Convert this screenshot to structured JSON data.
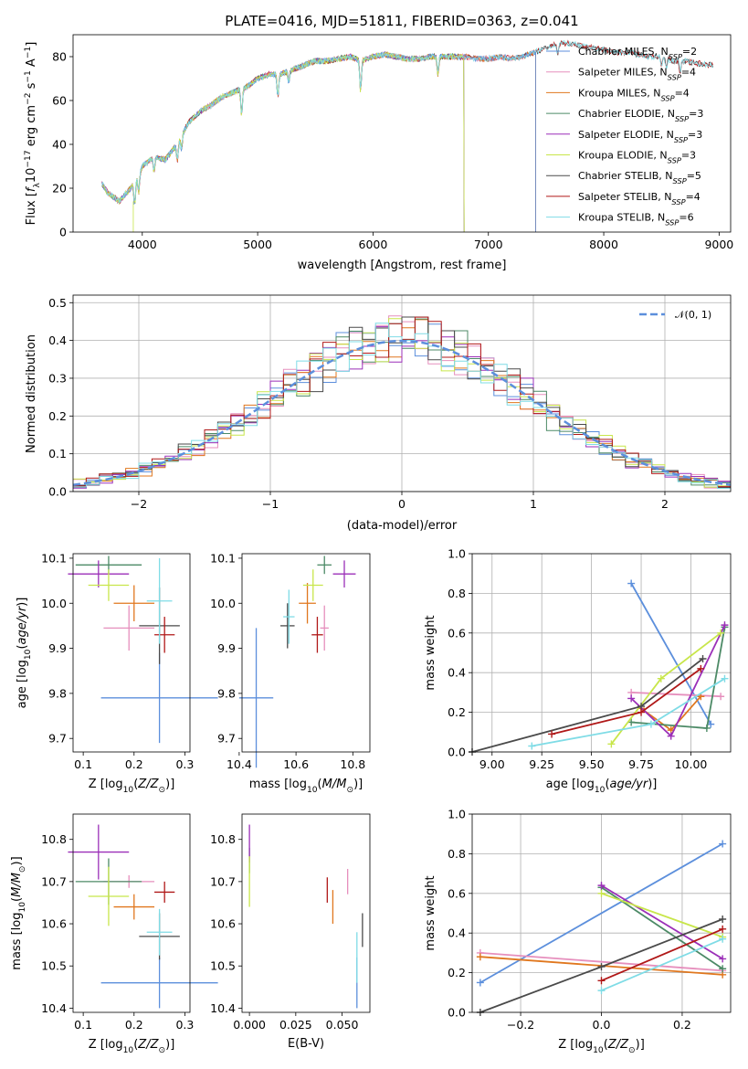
{
  "figure_title": "PLATE=0416, MJD=51811, FIBERID=0363, z=0.041",
  "palette": {
    "Chabrier MILES": "#5c8fdc",
    "Salpeter MILES": "#e68fbd",
    "Kroupa MILES": "#e0771e",
    "Chabrier ELODIE": "#4c8a66",
    "Salpeter ELODIE": "#9b2fb8",
    "Kroupa ELODIE": "#c8e64a",
    "Chabrier STELIB": "#4a4a4a",
    "Salpeter STELIB": "#b01818",
    "Kroupa STELIB": "#7fdce6"
  },
  "chart_data": [
    {
      "id": "spectrum",
      "type": "line",
      "xlabel": "wavelength [Angstrom, rest frame]",
      "ylabel": "Flux [f_λ10^-17 erg cm^-2 s^-1 A^-1]",
      "xlim": [
        3400,
        9100
      ],
      "ylim": [
        0,
        90
      ],
      "xticks": [
        4000,
        5000,
        6000,
        7000,
        8000,
        9000
      ],
      "yticks": [
        0,
        20,
        40,
        60,
        80
      ],
      "grid": false,
      "legend_position": "right",
      "series": [
        {
          "name": "Chabrier MILES, N_SSP=2",
          "x_end": 7410
        },
        {
          "name": "Salpeter MILES, N_SSP=4",
          "x_end": 7410
        },
        {
          "name": "Kroupa MILES, N_SSP=4",
          "x_end": 7410
        },
        {
          "name": "Chabrier ELODIE, N_SSP=3",
          "x_end": 6790
        },
        {
          "name": "Salpeter ELODIE, N_SSP=3",
          "x_end": 6790
        },
        {
          "name": "Kroupa ELODIE, N_SSP=3",
          "x_end": 6790
        },
        {
          "name": "Chabrier STELIB, N_SSP=5",
          "x_end": 8950
        },
        {
          "name": "Salpeter STELIB, N_SSP=4",
          "x_end": 8950
        },
        {
          "name": "Kroupa STELIB, N_SSP=6",
          "x_end": 8950
        }
      ],
      "continuum": [
        [
          3650,
          22
        ],
        [
          3700,
          18
        ],
        [
          3800,
          14
        ],
        [
          3900,
          20
        ],
        [
          3950,
          24
        ],
        [
          4000,
          30
        ],
        [
          4100,
          34
        ],
        [
          4200,
          33
        ],
        [
          4300,
          40
        ],
        [
          4400,
          50
        ],
        [
          4500,
          55
        ],
        [
          4600,
          58
        ],
        [
          4700,
          62
        ],
        [
          4800,
          64
        ],
        [
          4900,
          66
        ],
        [
          5000,
          70
        ],
        [
          5100,
          72
        ],
        [
          5200,
          72
        ],
        [
          5300,
          74
        ],
        [
          5400,
          76
        ],
        [
          5500,
          78
        ],
        [
          5600,
          78
        ],
        [
          5700,
          79
        ],
        [
          5800,
          80
        ],
        [
          5900,
          78
        ],
        [
          6000,
          80
        ],
        [
          6100,
          81
        ],
        [
          6200,
          80
        ],
        [
          6300,
          79
        ],
        [
          6400,
          79
        ],
        [
          6500,
          80
        ],
        [
          6600,
          80
        ],
        [
          6700,
          80
        ],
        [
          6800,
          80
        ],
        [
          6900,
          79
        ],
        [
          7000,
          79
        ],
        [
          7100,
          80
        ],
        [
          7200,
          79
        ],
        [
          7300,
          80
        ],
        [
          7400,
          82
        ],
        [
          7500,
          84
        ],
        [
          7600,
          86
        ],
        [
          7700,
          86
        ],
        [
          7800,
          85
        ],
        [
          7900,
          84
        ],
        [
          8000,
          83
        ],
        [
          8100,
          82
        ],
        [
          8200,
          82
        ],
        [
          8300,
          81
        ],
        [
          8400,
          80
        ],
        [
          8500,
          80
        ],
        [
          8600,
          78
        ],
        [
          8700,
          78
        ],
        [
          8800,
          77
        ],
        [
          8950,
          76
        ]
      ],
      "absorption": [
        [
          3934,
          -10
        ],
        [
          3969,
          -8
        ],
        [
          4102,
          -6
        ],
        [
          4304,
          -8
        ],
        [
          4340,
          -6
        ],
        [
          4861,
          -12
        ],
        [
          5175,
          -10
        ],
        [
          5270,
          -5
        ],
        [
          5892,
          -14
        ],
        [
          6563,
          -8
        ],
        [
          7600,
          -5
        ],
        [
          8500,
          -4
        ],
        [
          8542,
          -5
        ],
        [
          8662,
          -5
        ]
      ]
    },
    {
      "id": "residuals",
      "type": "step",
      "xlabel": "(data-model)/error",
      "ylabel": "Normed distribution",
      "xlim": [
        -2.5,
        2.5
      ],
      "ylim": [
        0,
        0.52
      ],
      "xticks": [
        -2,
        -1,
        0,
        1,
        2
      ],
      "yticks": [
        0.0,
        0.1,
        0.2,
        0.3,
        0.4,
        0.5
      ],
      "grid": true,
      "bin_width": 0.1,
      "gaussian": {
        "name": "𝒩(0, 1)",
        "mean": 0,
        "sigma": 1
      },
      "legend_position": "top-right"
    },
    {
      "id": "age_vs_Z",
      "type": "errorbar",
      "xlabel": "Z [log10(Z/Z_sun)]",
      "ylabel": "age  [log10(age/yr)]",
      "xlim": [
        0.08,
        0.31
      ],
      "ylim": [
        9.67,
        10.11
      ],
      "xticks": [
        0.1,
        0.2,
        0.3
      ],
      "yticks": [
        9.7,
        9.8,
        9.9,
        10.0,
        10.1
      ],
      "points": [
        {
          "series": "Chabrier MILES",
          "x": 0.25,
          "xerr": 0.115,
          "y": 9.79,
          "yerr": 0.1
        },
        {
          "series": "Salpeter MILES",
          "x": 0.19,
          "xerr": 0.05,
          "y": 9.945,
          "yerr": 0.05
        },
        {
          "series": "Kroupa MILES",
          "x": 0.2,
          "xerr": 0.04,
          "y": 10.0,
          "yerr": 0.04
        },
        {
          "series": "Chabrier ELODIE",
          "x": 0.15,
          "xerr": 0.065,
          "y": 10.085,
          "yerr": 0.02
        },
        {
          "series": "Salpeter ELODIE",
          "x": 0.13,
          "xerr": 0.06,
          "y": 10.065,
          "yerr": 0.03
        },
        {
          "series": "Kroupa ELODIE",
          "x": 0.15,
          "xerr": 0.04,
          "y": 10.04,
          "yerr": 0.035
        },
        {
          "series": "Chabrier STELIB",
          "x": 0.25,
          "xerr": 0.04,
          "y": 9.95,
          "yerr": 0.085
        },
        {
          "series": "Salpeter STELIB",
          "x": 0.26,
          "xerr": 0.02,
          "y": 9.93,
          "yerr": 0.04
        },
        {
          "series": "Kroupa STELIB",
          "x": 0.25,
          "xerr": 0.025,
          "y": 10.005,
          "yerr": 0.095
        }
      ]
    },
    {
      "id": "age_vs_mass",
      "type": "errorbar",
      "xlabel": "mass [log10(M/M_sun)]",
      "ylabel": "",
      "xlim": [
        10.41,
        10.86
      ],
      "ylim": [
        9.67,
        10.11
      ],
      "xticks": [
        10.4,
        10.6,
        10.8
      ],
      "yticks": [
        9.7,
        9.8,
        9.9,
        10.0,
        10.1
      ],
      "points": [
        {
          "series": "Chabrier MILES",
          "x": 10.46,
          "xerr": 0.06,
          "y": 9.79,
          "yerr": 0.155
        },
        {
          "series": "Salpeter MILES",
          "x": 10.7,
          "xerr": 0.015,
          "y": 9.945,
          "yerr": 0.05
        },
        {
          "series": "Kroupa MILES",
          "x": 10.64,
          "xerr": 0.03,
          "y": 10.0,
          "yerr": 0.045
        },
        {
          "series": "Chabrier ELODIE",
          "x": 10.7,
          "xerr": 0.025,
          "y": 10.085,
          "yerr": 0.02
        },
        {
          "series": "Salpeter ELODIE",
          "x": 10.77,
          "xerr": 0.04,
          "y": 10.065,
          "yerr": 0.03
        },
        {
          "series": "Kroupa ELODIE",
          "x": 10.66,
          "xerr": 0.035,
          "y": 10.04,
          "yerr": 0.035
        },
        {
          "series": "Chabrier STELIB",
          "x": 10.57,
          "xerr": 0.025,
          "y": 9.95,
          "yerr": 0.05
        },
        {
          "series": "Salpeter STELIB",
          "x": 10.675,
          "xerr": 0.02,
          "y": 9.93,
          "yerr": 0.04
        },
        {
          "series": "Kroupa STELIB",
          "x": 10.575,
          "xerr": 0.02,
          "y": 9.97,
          "yerr": 0.06
        }
      ]
    },
    {
      "id": "weight_vs_age",
      "type": "line",
      "xlabel": "age  [log10(age/yr)]",
      "ylabel": "mass weight",
      "xlim": [
        8.9,
        10.2
      ],
      "ylim": [
        0,
        1
      ],
      "xticks": [
        9.0,
        9.25,
        9.5,
        9.75,
        10.0
      ],
      "yticks": [
        0.0,
        0.2,
        0.4,
        0.6,
        0.8,
        1.0
      ],
      "grid": true,
      "series": [
        {
          "name": "Chabrier MILES",
          "points": [
            [
              9.7,
              0.85
            ],
            [
              10.1,
              0.14
            ]
          ]
        },
        {
          "name": "Salpeter MILES",
          "points": [
            [
              9.7,
              0.3
            ],
            [
              10.15,
              0.28
            ]
          ]
        },
        {
          "name": "Kroupa MILES",
          "points": [
            [
              9.75,
              0.22
            ],
            [
              9.9,
              0.11
            ],
            [
              10.05,
              0.28
            ]
          ]
        },
        {
          "name": "Chabrier ELODIE",
          "points": [
            [
              9.7,
              0.15
            ],
            [
              10.08,
              0.12
            ],
            [
              10.17,
              0.63
            ]
          ]
        },
        {
          "name": "Salpeter ELODIE",
          "points": [
            [
              9.7,
              0.27
            ],
            [
              9.9,
              0.08
            ],
            [
              10.17,
              0.64
            ]
          ]
        },
        {
          "name": "Kroupa ELODIE",
          "points": [
            [
              9.6,
              0.04
            ],
            [
              9.85,
              0.37
            ],
            [
              10.15,
              0.6
            ]
          ]
        },
        {
          "name": "Chabrier STELIB",
          "points": [
            [
              8.9,
              0.0
            ],
            [
              9.75,
              0.23
            ],
            [
              10.06,
              0.47
            ]
          ]
        },
        {
          "name": "Salpeter STELIB",
          "points": [
            [
              9.3,
              0.09
            ],
            [
              9.75,
              0.2
            ],
            [
              10.05,
              0.42
            ]
          ]
        },
        {
          "name": "Kroupa STELIB",
          "points": [
            [
              9.2,
              0.03
            ],
            [
              9.8,
              0.14
            ],
            [
              10.17,
              0.37
            ]
          ]
        }
      ]
    },
    {
      "id": "mass_vs_Z",
      "type": "errorbar",
      "xlabel": "Z [log10(Z/Z_sun)]",
      "ylabel": "mass [log10(M/M_sun)]",
      "xlim": [
        0.08,
        0.31
      ],
      "ylim": [
        10.39,
        10.86
      ],
      "xticks": [
        0.1,
        0.2,
        0.3
      ],
      "yticks": [
        10.4,
        10.5,
        10.6,
        10.7,
        10.8
      ],
      "points": [
        {
          "series": "Chabrier MILES",
          "x": 0.25,
          "xerr": 0.115,
          "y": 10.46,
          "yerr": 0.06
        },
        {
          "series": "Salpeter MILES",
          "x": 0.19,
          "xerr": 0.05,
          "y": 10.7,
          "yerr": 0.015
        },
        {
          "series": "Kroupa MILES",
          "x": 0.2,
          "xerr": 0.04,
          "y": 10.64,
          "yerr": 0.03
        },
        {
          "series": "Chabrier ELODIE",
          "x": 0.15,
          "xerr": 0.065,
          "y": 10.7,
          "yerr": 0.055
        },
        {
          "series": "Salpeter ELODIE",
          "x": 0.13,
          "xerr": 0.06,
          "y": 10.77,
          "yerr": 0.065
        },
        {
          "series": "Kroupa ELODIE",
          "x": 0.15,
          "xerr": 0.04,
          "y": 10.665,
          "yerr": 0.07
        },
        {
          "series": "Chabrier STELIB",
          "x": 0.25,
          "xerr": 0.04,
          "y": 10.57,
          "yerr": 0.055
        },
        {
          "series": "Salpeter STELIB",
          "x": 0.26,
          "xerr": 0.02,
          "y": 10.675,
          "yerr": 0.025
        },
        {
          "series": "Kroupa STELIB",
          "x": 0.25,
          "xerr": 0.025,
          "y": 10.58,
          "yerr": 0.055
        }
      ]
    },
    {
      "id": "mass_vs_ebv",
      "type": "errorbar",
      "xlabel": "E(B-V)",
      "ylabel": "",
      "xlim": [
        -0.004,
        0.065
      ],
      "ylim": [
        10.39,
        10.86
      ],
      "xticks": [
        0.0,
        0.025,
        0.05
      ],
      "yticks": [
        10.4,
        10.5,
        10.6,
        10.7,
        10.8
      ],
      "points": [
        {
          "series": "Chabrier MILES",
          "x": 0.058,
          "xerr": 0.0,
          "y": 10.46,
          "yerr": 0.06
        },
        {
          "series": "Salpeter MILES",
          "x": 0.053,
          "xerr": 0.0,
          "y": 10.7,
          "yerr": 0.03
        },
        {
          "series": "Kroupa MILES",
          "x": 0.045,
          "xerr": 0.0,
          "y": 10.64,
          "yerr": 0.04
        },
        {
          "series": "Chabrier ELODIE",
          "x": 0.0,
          "xerr": 0.0,
          "y": 10.75,
          "yerr": 0.03
        },
        {
          "series": "Salpeter ELODIE",
          "x": 0.0,
          "xerr": 0.0,
          "y": 10.79,
          "yerr": 0.045
        },
        {
          "series": "Kroupa ELODIE",
          "x": 0.0,
          "xerr": 0.0,
          "y": 10.7,
          "yerr": 0.06
        },
        {
          "series": "Chabrier STELIB",
          "x": 0.061,
          "xerr": 0.0,
          "y": 10.585,
          "yerr": 0.04
        },
        {
          "series": "Salpeter STELIB",
          "x": 0.042,
          "xerr": 0.0,
          "y": 10.68,
          "yerr": 0.03
        },
        {
          "series": "Kroupa STELIB",
          "x": 0.058,
          "xerr": 0.0,
          "y": 10.52,
          "yerr": 0.06
        }
      ]
    },
    {
      "id": "weight_vs_Z",
      "type": "line",
      "xlabel": "Z [log10(Z/Z_sun)]",
      "ylabel": "mass weight",
      "xlim": [
        -0.32,
        0.32
      ],
      "ylim": [
        0,
        1
      ],
      "xticks": [
        -0.2,
        0.0,
        0.2
      ],
      "yticks": [
        0.0,
        0.2,
        0.4,
        0.6,
        0.8,
        1.0
      ],
      "grid": true,
      "series": [
        {
          "name": "Chabrier MILES",
          "points": [
            [
              -0.3,
              0.15
            ],
            [
              0.3,
              0.85
            ]
          ]
        },
        {
          "name": "Salpeter MILES",
          "points": [
            [
              -0.3,
              0.3
            ],
            [
              0.3,
              0.21
            ]
          ]
        },
        {
          "name": "Kroupa MILES",
          "points": [
            [
              -0.3,
              0.28
            ],
            [
              0.3,
              0.19
            ]
          ]
        },
        {
          "name": "Chabrier ELODIE",
          "points": [
            [
              0.0,
              0.63
            ],
            [
              0.3,
              0.22
            ]
          ]
        },
        {
          "name": "Salpeter ELODIE",
          "points": [
            [
              0.0,
              0.64
            ],
            [
              0.3,
              0.27
            ]
          ]
        },
        {
          "name": "Kroupa ELODIE",
          "points": [
            [
              0.0,
              0.6
            ],
            [
              0.3,
              0.38
            ]
          ]
        },
        {
          "name": "Chabrier STELIB",
          "points": [
            [
              -0.3,
              0.0
            ],
            [
              0.0,
              0.23
            ],
            [
              0.3,
              0.47
            ]
          ]
        },
        {
          "name": "Salpeter STELIB",
          "points": [
            [
              0.0,
              0.16
            ],
            [
              0.3,
              0.42
            ]
          ]
        },
        {
          "name": "Kroupa STELIB",
          "points": [
            [
              0.0,
              0.11
            ],
            [
              0.3,
              0.37
            ]
          ]
        }
      ]
    }
  ]
}
